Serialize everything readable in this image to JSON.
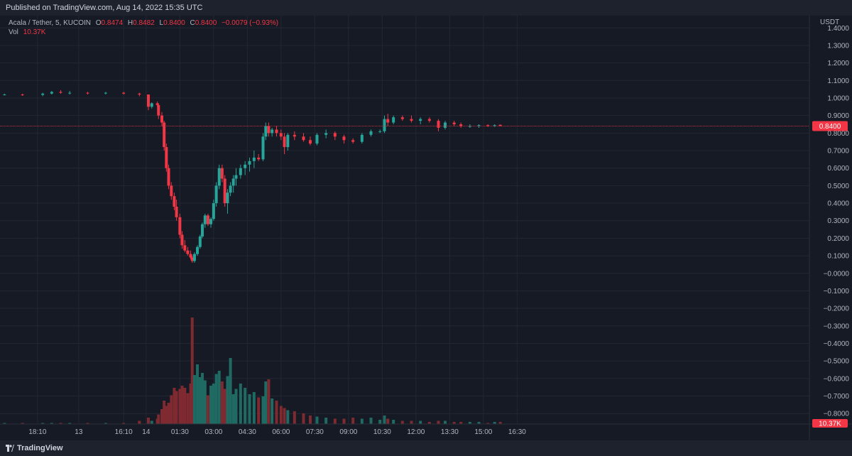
{
  "header": {
    "published": "Published on TradingView.com, Aug 14, 2022 15:35 UTC"
  },
  "legend": {
    "symbol": "Acala / Tether, 5, KUCOIN",
    "o_label": "O",
    "o_value": "0.8474",
    "h_label": "H",
    "h_value": "0.8482",
    "l_label": "L",
    "l_value": "0.8400",
    "c_label": "C",
    "c_value": "0.8400",
    "change": "−0.0079 (−0.93%)",
    "vol_label": "Vol",
    "vol_value": "10.37K"
  },
  "footer": {
    "brand": "TradingView"
  },
  "colors": {
    "up": "#26a69a",
    "down": "#f23645",
    "up_vol": "#1f6b63",
    "down_vol": "#7e2a30",
    "grid": "#232733",
    "price_line": "#f23645"
  },
  "chart_data": {
    "type": "candlestick",
    "currency": "USDT",
    "last_price": "0.8400",
    "last_volume": "10.37K",
    "yticks": [
      "1.4000",
      "1.3000",
      "1.2000",
      "1.1000",
      "1.0000",
      "0.9000",
      "0.8000",
      "0.7000",
      "0.6000",
      "0.5000",
      "0.4000",
      "0.3000",
      "0.2000",
      "0.1000",
      "−0.0000",
      "−0.1000",
      "−0.2000",
      "−0.3000",
      "−0.4000",
      "−0.5000",
      "−0.6000",
      "−0.7000",
      "−0.8000"
    ],
    "ylim": [
      -0.86,
      1.47
    ],
    "xlim": [
      -6.5,
      29.5
    ],
    "xticks": [
      {
        "label": "18:10",
        "t": -4.83
      },
      {
        "label": "13",
        "t": -3.0
      },
      {
        "label": "16:10",
        "t": -1.0
      },
      {
        "label": "14",
        "t": 0.0
      },
      {
        "label": "01:30",
        "t": 1.5
      },
      {
        "label": "03:00",
        "t": 3.0
      },
      {
        "label": "04:30",
        "t": 4.5
      },
      {
        "label": "06:00",
        "t": 6.0
      },
      {
        "label": "07:30",
        "t": 7.5
      },
      {
        "label": "09:00",
        "t": 9.0
      },
      {
        "label": "10:30",
        "t": 10.5
      },
      {
        "label": "12:00",
        "t": 12.0
      },
      {
        "label": "13:30",
        "t": 13.5
      },
      {
        "label": "15:00",
        "t": 15.0
      },
      {
        "label": "16:30",
        "t": 16.5
      }
    ],
    "candles_note": "hours relative to Aug 14 00:00 UTC; o,h,l,c in USDT; v = volume (relative units, max 100)",
    "candles": [
      [
        -6.3,
        1.02,
        1.025,
        1.015,
        1.02,
        1
      ],
      [
        -5.5,
        1.02,
        1.025,
        1.012,
        1.018,
        1
      ],
      [
        -4.6,
        1.018,
        1.03,
        1.01,
        1.025,
        1
      ],
      [
        -4.2,
        1.025,
        1.04,
        1.02,
        1.035,
        1
      ],
      [
        -3.8,
        1.035,
        1.045,
        1.025,
        1.03,
        1
      ],
      [
        -3.4,
        1.03,
        1.04,
        1.02,
        1.03,
        1
      ],
      [
        -2.6,
        1.03,
        1.035,
        1.02,
        1.028,
        1
      ],
      [
        -1.8,
        1.028,
        1.035,
        1.02,
        1.03,
        1
      ],
      [
        -1.0,
        1.03,
        1.035,
        1.02,
        1.025,
        1
      ],
      [
        -0.3,
        1.025,
        1.03,
        1.01,
        1.02,
        3
      ],
      [
        0.1,
        1.02,
        1.02,
        0.93,
        0.95,
        6
      ],
      [
        0.25,
        0.95,
        0.975,
        0.94,
        0.97,
        3
      ],
      [
        0.5,
        0.97,
        0.98,
        0.95,
        0.96,
        5
      ],
      [
        0.55,
        0.96,
        0.97,
        0.88,
        0.9,
        9
      ],
      [
        0.7,
        0.9,
        0.92,
        0.84,
        0.86,
        14
      ],
      [
        0.8,
        0.86,
        0.87,
        0.7,
        0.72,
        22
      ],
      [
        0.9,
        0.72,
        0.74,
        0.58,
        0.6,
        17
      ],
      [
        1.0,
        0.6,
        0.62,
        0.48,
        0.5,
        20
      ],
      [
        1.12,
        0.5,
        0.52,
        0.42,
        0.44,
        27
      ],
      [
        1.25,
        0.44,
        0.46,
        0.36,
        0.38,
        34
      ],
      [
        1.35,
        0.38,
        0.42,
        0.3,
        0.32,
        31
      ],
      [
        1.5,
        0.32,
        0.34,
        0.2,
        0.22,
        33
      ],
      [
        1.6,
        0.22,
        0.24,
        0.14,
        0.16,
        36
      ],
      [
        1.72,
        0.16,
        0.19,
        0.12,
        0.13,
        34
      ],
      [
        1.85,
        0.13,
        0.15,
        0.1,
        0.11,
        29
      ],
      [
        1.98,
        0.11,
        0.13,
        0.08,
        0.09,
        38
      ],
      [
        2.05,
        0.09,
        0.1,
        0.06,
        0.07,
        100
      ],
      [
        2.15,
        0.07,
        0.12,
        0.06,
        0.11,
        46
      ],
      [
        2.28,
        0.11,
        0.16,
        0.1,
        0.15,
        56
      ],
      [
        2.4,
        0.15,
        0.22,
        0.14,
        0.21,
        44
      ],
      [
        2.5,
        0.21,
        0.29,
        0.2,
        0.28,
        48
      ],
      [
        2.62,
        0.28,
        0.34,
        0.26,
        0.33,
        41
      ],
      [
        2.75,
        0.33,
        0.34,
        0.27,
        0.28,
        27
      ],
      [
        2.88,
        0.28,
        0.32,
        0.26,
        0.31,
        36
      ],
      [
        3.0,
        0.31,
        0.42,
        0.3,
        0.4,
        38
      ],
      [
        3.12,
        0.4,
        0.52,
        0.38,
        0.5,
        47
      ],
      [
        3.25,
        0.5,
        0.62,
        0.48,
        0.6,
        50
      ],
      [
        3.38,
        0.6,
        0.62,
        0.52,
        0.54,
        40
      ],
      [
        3.5,
        0.54,
        0.56,
        0.38,
        0.4,
        33
      ],
      [
        3.62,
        0.4,
        0.48,
        0.34,
        0.46,
        45
      ],
      [
        3.75,
        0.46,
        0.52,
        0.44,
        0.5,
        62
      ],
      [
        3.88,
        0.5,
        0.56,
        0.46,
        0.54,
        28
      ],
      [
        4.0,
        0.54,
        0.6,
        0.5,
        0.56,
        33
      ],
      [
        4.2,
        0.56,
        0.62,
        0.54,
        0.6,
        38
      ],
      [
        4.4,
        0.6,
        0.64,
        0.56,
        0.62,
        34
      ],
      [
        4.6,
        0.62,
        0.66,
        0.58,
        0.64,
        28
      ],
      [
        4.8,
        0.64,
        0.7,
        0.6,
        0.66,
        30
      ],
      [
        5.0,
        0.66,
        0.68,
        0.64,
        0.65,
        25
      ],
      [
        5.2,
        0.65,
        0.8,
        0.64,
        0.78,
        26
      ],
      [
        5.32,
        0.78,
        0.86,
        0.76,
        0.84,
        40
      ],
      [
        5.45,
        0.84,
        0.86,
        0.78,
        0.8,
        42
      ],
      [
        5.6,
        0.8,
        0.83,
        0.78,
        0.82,
        24
      ],
      [
        5.8,
        0.82,
        0.84,
        0.78,
        0.8,
        22
      ],
      [
        6.0,
        0.8,
        0.82,
        0.76,
        0.78,
        17
      ],
      [
        6.15,
        0.78,
        0.8,
        0.68,
        0.72,
        15
      ],
      [
        6.3,
        0.72,
        0.8,
        0.7,
        0.79,
        13
      ],
      [
        6.6,
        0.79,
        0.81,
        0.76,
        0.78,
        12
      ],
      [
        7.0,
        0.78,
        0.8,
        0.75,
        0.76,
        10
      ],
      [
        7.3,
        0.76,
        0.78,
        0.73,
        0.74,
        8
      ],
      [
        7.6,
        0.74,
        0.8,
        0.73,
        0.79,
        7
      ],
      [
        8.0,
        0.79,
        0.82,
        0.77,
        0.8,
        6
      ],
      [
        8.4,
        0.8,
        0.81,
        0.76,
        0.78,
        5
      ],
      [
        8.8,
        0.78,
        0.79,
        0.74,
        0.76,
        5
      ],
      [
        9.2,
        0.76,
        0.77,
        0.74,
        0.75,
        6
      ],
      [
        9.6,
        0.75,
        0.8,
        0.74,
        0.79,
        5
      ],
      [
        10.0,
        0.79,
        0.82,
        0.78,
        0.81,
        6
      ],
      [
        10.4,
        0.81,
        0.82,
        0.8,
        0.81,
        4
      ],
      [
        10.6,
        0.81,
        0.9,
        0.8,
        0.88,
        8
      ],
      [
        10.75,
        0.88,
        0.91,
        0.84,
        0.86,
        5
      ],
      [
        11.0,
        0.86,
        0.9,
        0.85,
        0.89,
        4
      ],
      [
        11.4,
        0.89,
        0.9,
        0.87,
        0.88,
        3
      ],
      [
        11.8,
        0.88,
        0.9,
        0.86,
        0.87,
        3
      ],
      [
        12.2,
        0.87,
        0.89,
        0.85,
        0.88,
        3
      ],
      [
        12.6,
        0.88,
        0.89,
        0.86,
        0.87,
        2
      ],
      [
        13.0,
        0.87,
        0.88,
        0.81,
        0.83,
        3
      ],
      [
        13.3,
        0.83,
        0.87,
        0.82,
        0.86,
        3
      ],
      [
        13.7,
        0.86,
        0.87,
        0.84,
        0.85,
        2
      ],
      [
        14.0,
        0.85,
        0.86,
        0.83,
        0.84,
        2
      ],
      [
        14.4,
        0.84,
        0.85,
        0.83,
        0.84,
        2
      ],
      [
        14.8,
        0.84,
        0.85,
        0.83,
        0.845,
        2
      ],
      [
        15.2,
        0.845,
        0.85,
        0.835,
        0.84,
        1
      ],
      [
        15.5,
        0.84,
        0.85,
        0.835,
        0.845,
        2
      ],
      [
        15.75,
        0.8474,
        0.8482,
        0.84,
        0.84,
        2
      ]
    ]
  }
}
